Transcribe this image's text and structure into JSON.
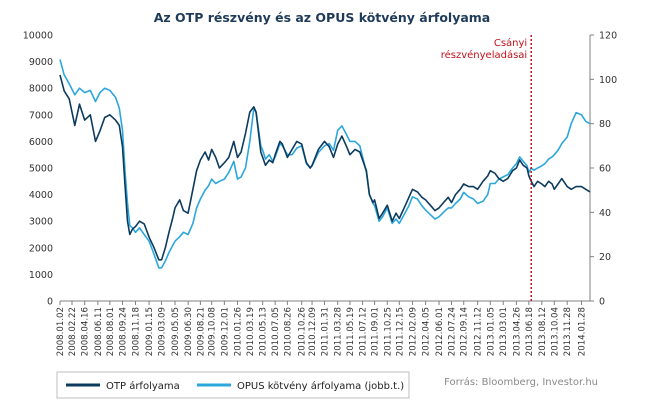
{
  "chart_data": {
    "type": "line",
    "title": "Az OTP részvény és az OPUS kötvény árfolyama",
    "xlabel": "",
    "ylabel": "",
    "y_left": {
      "min": 0,
      "max": 10000,
      "ticks": [
        "0",
        "1000",
        "2000",
        "3000",
        "4000",
        "5000",
        "6000",
        "7000",
        "8000",
        "9000",
        "10000"
      ]
    },
    "y_right": {
      "min": 0,
      "max": 120,
      "ticks": [
        "0",
        "20",
        "40",
        "60",
        "80",
        "100",
        "120"
      ]
    },
    "x_range": [
      "2008-01-02",
      "2014-03-05"
    ],
    "x_ticks": [
      "2008.01.02",
      "2008.02.22",
      "2008.04.16",
      "2008.06.11",
      "2008.08.01",
      "2008.09.24",
      "2008.11.18",
      "2009.01.15",
      "2009.03.09",
      "2009.05.05",
      "2009.06.30",
      "2009.08.21",
      "2009.10.08",
      "2009.12.01",
      "2010.01.26",
      "2010.03.19",
      "2010.05.13",
      "2010.07.05",
      "2010.08.26",
      "2010.10.26",
      "2010.12.09",
      "2011.01.31",
      "2011.03.28",
      "2011.05.19",
      "2011.07.12",
      "2011.09.01",
      "2011.10.25",
      "2011.12.15",
      "2012.02.09",
      "2012.04.05",
      "2012.06.01",
      "2012.07.24",
      "2012.09.14",
      "2012.11.12",
      "2013.01.05",
      "2013.03.01",
      "2013.04.26",
      "2013.06.18",
      "2013.08.12",
      "2013.10.04",
      "2013.11.28",
      "2014.01.28"
    ],
    "grid": false,
    "legend": "bottom",
    "annotation": {
      "text_lines": [
        "Csányi",
        "részvényeladásai"
      ],
      "date": "2013-06-28",
      "color": "#c0101a"
    },
    "series": [
      {
        "name": "OTP árfolyama",
        "axis": "left",
        "color": "#0d3b5e",
        "points": [
          [
            "2008-01-02",
            8500
          ],
          [
            "2008-01-20",
            7900
          ],
          [
            "2008-02-10",
            7600
          ],
          [
            "2008-03-05",
            6600
          ],
          [
            "2008-03-25",
            7400
          ],
          [
            "2008-04-16",
            6800
          ],
          [
            "2008-05-10",
            7000
          ],
          [
            "2008-06-01",
            6000
          ],
          [
            "2008-06-20",
            6400
          ],
          [
            "2008-07-10",
            6900
          ],
          [
            "2008-08-01",
            7000
          ],
          [
            "2008-08-25",
            6800
          ],
          [
            "2008-09-10",
            6600
          ],
          [
            "2008-09-24",
            5800
          ],
          [
            "2008-10-05",
            4300
          ],
          [
            "2008-10-15",
            3000
          ],
          [
            "2008-10-25",
            2500
          ],
          [
            "2008-11-05",
            2700
          ],
          [
            "2008-11-18",
            2800
          ],
          [
            "2008-12-05",
            3000
          ],
          [
            "2008-12-25",
            2900
          ],
          [
            "2009-01-15",
            2400
          ],
          [
            "2009-02-05",
            2000
          ],
          [
            "2009-02-25",
            1550
          ],
          [
            "2009-03-09",
            1550
          ],
          [
            "2009-03-25",
            2000
          ],
          [
            "2009-04-10",
            2600
          ],
          [
            "2009-04-25",
            3100
          ],
          [
            "2009-05-05",
            3500
          ],
          [
            "2009-05-25",
            3800
          ],
          [
            "2009-06-10",
            3400
          ],
          [
            "2009-06-30",
            3300
          ],
          [
            "2009-07-20",
            4200
          ],
          [
            "2009-08-05",
            4900
          ],
          [
            "2009-08-21",
            5300
          ],
          [
            "2009-09-10",
            5600
          ],
          [
            "2009-09-25",
            5300
          ],
          [
            "2009-10-08",
            5700
          ],
          [
            "2009-10-25",
            5400
          ],
          [
            "2009-11-10",
            5000
          ],
          [
            "2009-12-01",
            5200
          ],
          [
            "2009-12-20",
            5400
          ],
          [
            "2010-01-10",
            6000
          ],
          [
            "2010-01-26",
            5400
          ],
          [
            "2010-02-10",
            5600
          ],
          [
            "2010-03-01",
            6300
          ],
          [
            "2010-03-19",
            7100
          ],
          [
            "2010-04-05",
            7300
          ],
          [
            "2010-04-15",
            7100
          ],
          [
            "2010-05-05",
            5600
          ],
          [
            "2010-05-13",
            5400
          ],
          [
            "2010-05-25",
            5100
          ],
          [
            "2010-06-10",
            5300
          ],
          [
            "2010-06-25",
            5200
          ],
          [
            "2010-07-05",
            5500
          ],
          [
            "2010-07-25",
            6000
          ],
          [
            "2010-08-05",
            5900
          ],
          [
            "2010-08-26",
            5400
          ],
          [
            "2010-09-15",
            5700
          ],
          [
            "2010-10-05",
            6000
          ],
          [
            "2010-10-26",
            5900
          ],
          [
            "2010-11-15",
            5200
          ],
          [
            "2010-12-01",
            5000
          ],
          [
            "2010-12-09",
            5100
          ],
          [
            "2011-01-05",
            5700
          ],
          [
            "2011-01-31",
            6000
          ],
          [
            "2011-02-20",
            5800
          ],
          [
            "2011-03-10",
            5400
          ],
          [
            "2011-03-28",
            5900
          ],
          [
            "2011-04-15",
            6200
          ],
          [
            "2011-05-05",
            5800
          ],
          [
            "2011-05-19",
            5500
          ],
          [
            "2011-06-10",
            5700
          ],
          [
            "2011-06-30",
            5600
          ],
          [
            "2011-07-12",
            5300
          ],
          [
            "2011-07-28",
            4900
          ],
          [
            "2011-08-10",
            4000
          ],
          [
            "2011-08-25",
            3700
          ],
          [
            "2011-09-01",
            3800
          ],
          [
            "2011-09-20",
            3100
          ],
          [
            "2011-10-05",
            3300
          ],
          [
            "2011-10-25",
            3600
          ],
          [
            "2011-11-15",
            3000
          ],
          [
            "2011-12-01",
            3300
          ],
          [
            "2011-12-15",
            3100
          ],
          [
            "2012-01-10",
            3600
          ],
          [
            "2012-01-25",
            3900
          ],
          [
            "2012-02-09",
            4200
          ],
          [
            "2012-03-01",
            4100
          ],
          [
            "2012-03-20",
            3900
          ],
          [
            "2012-04-05",
            3800
          ],
          [
            "2012-04-25",
            3600
          ],
          [
            "2012-05-15",
            3400
          ],
          [
            "2012-06-01",
            3500
          ],
          [
            "2012-06-20",
            3700
          ],
          [
            "2012-07-10",
            3900
          ],
          [
            "2012-07-24",
            3700
          ],
          [
            "2012-08-10",
            4000
          ],
          [
            "2012-08-30",
            4200
          ],
          [
            "2012-09-14",
            4400
          ],
          [
            "2012-10-05",
            4300
          ],
          [
            "2012-10-25",
            4300
          ],
          [
            "2012-11-12",
            4200
          ],
          [
            "2012-12-05",
            4500
          ],
          [
            "2012-12-25",
            4700
          ],
          [
            "2013-01-05",
            4900
          ],
          [
            "2013-01-25",
            4800
          ],
          [
            "2013-02-10",
            4600
          ],
          [
            "2013-03-01",
            4500
          ],
          [
            "2013-03-20",
            4600
          ],
          [
            "2013-04-10",
            4900
          ],
          [
            "2013-04-26",
            5000
          ],
          [
            "2013-05-10",
            5300
          ],
          [
            "2013-05-25",
            5100
          ],
          [
            "2013-06-10",
            5000
          ],
          [
            "2013-06-18",
            4700
          ],
          [
            "2013-06-28",
            4500
          ],
          [
            "2013-07-10",
            4300
          ],
          [
            "2013-07-25",
            4500
          ],
          [
            "2013-08-12",
            4400
          ],
          [
            "2013-08-25",
            4300
          ],
          [
            "2013-09-10",
            4500
          ],
          [
            "2013-09-25",
            4400
          ],
          [
            "2013-10-04",
            4200
          ],
          [
            "2013-10-20",
            4400
          ],
          [
            "2013-11-05",
            4600
          ],
          [
            "2013-11-28",
            4300
          ],
          [
            "2013-12-15",
            4200
          ],
          [
            "2014-01-05",
            4300
          ],
          [
            "2014-01-28",
            4300
          ],
          [
            "2014-02-15",
            4200
          ],
          [
            "2014-03-05",
            4100
          ]
        ]
      },
      {
        "name": "OPUS kötvény árfolyama (jobb.t.)",
        "axis": "right",
        "color": "#2ca7dc",
        "points": [
          [
            "2008-01-02",
            109
          ],
          [
            "2008-01-20",
            102
          ],
          [
            "2008-02-10",
            98
          ],
          [
            "2008-03-05",
            93
          ],
          [
            "2008-03-25",
            96
          ],
          [
            "2008-04-16",
            94
          ],
          [
            "2008-05-10",
            95
          ],
          [
            "2008-06-01",
            90
          ],
          [
            "2008-06-20",
            94
          ],
          [
            "2008-07-10",
            96
          ],
          [
            "2008-08-01",
            95
          ],
          [
            "2008-08-25",
            92
          ],
          [
            "2008-09-10",
            87
          ],
          [
            "2008-09-24",
            77
          ],
          [
            "2008-10-05",
            58
          ],
          [
            "2008-10-15",
            44
          ],
          [
            "2008-10-25",
            34
          ],
          [
            "2008-11-05",
            33
          ],
          [
            "2008-11-18",
            31
          ],
          [
            "2008-12-05",
            33
          ],
          [
            "2008-12-25",
            30
          ],
          [
            "2009-01-15",
            27
          ],
          [
            "2009-02-05",
            21
          ],
          [
            "2009-02-25",
            15
          ],
          [
            "2009-03-09",
            15
          ],
          [
            "2009-03-25",
            18
          ],
          [
            "2009-04-10",
            22
          ],
          [
            "2009-04-25",
            25
          ],
          [
            "2009-05-05",
            27
          ],
          [
            "2009-05-25",
            29
          ],
          [
            "2009-06-10",
            31
          ],
          [
            "2009-06-30",
            30
          ],
          [
            "2009-07-20",
            35
          ],
          [
            "2009-08-05",
            42
          ],
          [
            "2009-08-21",
            46
          ],
          [
            "2009-09-10",
            50
          ],
          [
            "2009-09-25",
            52
          ],
          [
            "2009-10-08",
            55
          ],
          [
            "2009-10-25",
            53
          ],
          [
            "2009-11-10",
            54
          ],
          [
            "2009-12-01",
            55
          ],
          [
            "2009-12-20",
            58
          ],
          [
            "2010-01-10",
            63
          ],
          [
            "2010-01-26",
            55
          ],
          [
            "2010-02-10",
            56
          ],
          [
            "2010-03-01",
            60
          ],
          [
            "2010-03-19",
            72
          ],
          [
            "2010-04-05",
            87
          ],
          [
            "2010-04-15",
            85
          ],
          [
            "2010-05-05",
            70
          ],
          [
            "2010-05-13",
            68
          ],
          [
            "2010-05-25",
            64
          ],
          [
            "2010-06-10",
            66
          ],
          [
            "2010-06-25",
            63
          ],
          [
            "2010-07-05",
            65
          ],
          [
            "2010-07-25",
            71
          ],
          [
            "2010-08-05",
            70
          ],
          [
            "2010-08-26",
            66
          ],
          [
            "2010-09-15",
            66
          ],
          [
            "2010-10-05",
            69
          ],
          [
            "2010-10-26",
            70
          ],
          [
            "2010-11-15",
            62
          ],
          [
            "2010-12-01",
            60
          ],
          [
            "2010-12-09",
            61
          ],
          [
            "2011-01-05",
            67
          ],
          [
            "2011-01-31",
            70
          ],
          [
            "2011-02-20",
            71
          ],
          [
            "2011-03-10",
            68
          ],
          [
            "2011-03-28",
            77
          ],
          [
            "2011-04-15",
            79
          ],
          [
            "2011-05-05",
            75
          ],
          [
            "2011-05-19",
            72
          ],
          [
            "2011-06-10",
            72
          ],
          [
            "2011-06-30",
            70
          ],
          [
            "2011-07-12",
            65
          ],
          [
            "2011-07-28",
            58
          ],
          [
            "2011-08-10",
            48
          ],
          [
            "2011-08-25",
            44
          ],
          [
            "2011-09-01",
            43
          ],
          [
            "2011-09-20",
            36
          ],
          [
            "2011-10-05",
            38
          ],
          [
            "2011-10-25",
            42
          ],
          [
            "2011-11-15",
            35
          ],
          [
            "2011-12-01",
            37
          ],
          [
            "2011-12-15",
            35
          ],
          [
            "2012-01-10",
            40
          ],
          [
            "2012-01-25",
            43
          ],
          [
            "2012-02-09",
            47
          ],
          [
            "2012-03-01",
            46
          ],
          [
            "2012-03-20",
            43
          ],
          [
            "2012-04-05",
            41
          ],
          [
            "2012-04-25",
            39
          ],
          [
            "2012-05-15",
            37
          ],
          [
            "2012-06-01",
            38
          ],
          [
            "2012-06-20",
            40
          ],
          [
            "2012-07-10",
            42
          ],
          [
            "2012-07-24",
            42
          ],
          [
            "2012-08-10",
            44
          ],
          [
            "2012-08-30",
            46
          ],
          [
            "2012-09-14",
            49
          ],
          [
            "2012-10-05",
            47
          ],
          [
            "2012-10-25",
            46
          ],
          [
            "2012-11-12",
            44
          ],
          [
            "2012-12-05",
            45
          ],
          [
            "2012-12-25",
            48
          ],
          [
            "2013-01-05",
            53
          ],
          [
            "2013-01-25",
            53
          ],
          [
            "2013-02-10",
            55
          ],
          [
            "2013-03-01",
            56
          ],
          [
            "2013-03-20",
            57
          ],
          [
            "2013-04-10",
            60
          ],
          [
            "2013-04-26",
            62
          ],
          [
            "2013-05-10",
            65
          ],
          [
            "2013-05-25",
            63
          ],
          [
            "2013-06-10",
            61
          ],
          [
            "2013-06-18",
            58
          ],
          [
            "2013-06-28",
            60
          ],
          [
            "2013-07-10",
            59
          ],
          [
            "2013-07-25",
            60
          ],
          [
            "2013-08-12",
            61
          ],
          [
            "2013-08-25",
            62
          ],
          [
            "2013-09-10",
            64
          ],
          [
            "2013-09-25",
            65
          ],
          [
            "2013-10-04",
            66
          ],
          [
            "2013-10-20",
            68
          ],
          [
            "2013-11-05",
            71
          ],
          [
            "2013-11-28",
            74
          ],
          [
            "2013-12-15",
            80
          ],
          [
            "2014-01-05",
            85
          ],
          [
            "2014-01-28",
            84
          ],
          [
            "2014-02-15",
            81
          ],
          [
            "2014-03-05",
            80
          ]
        ]
      }
    ],
    "source": "Forrás: Bloomberg, Investor.hu"
  }
}
